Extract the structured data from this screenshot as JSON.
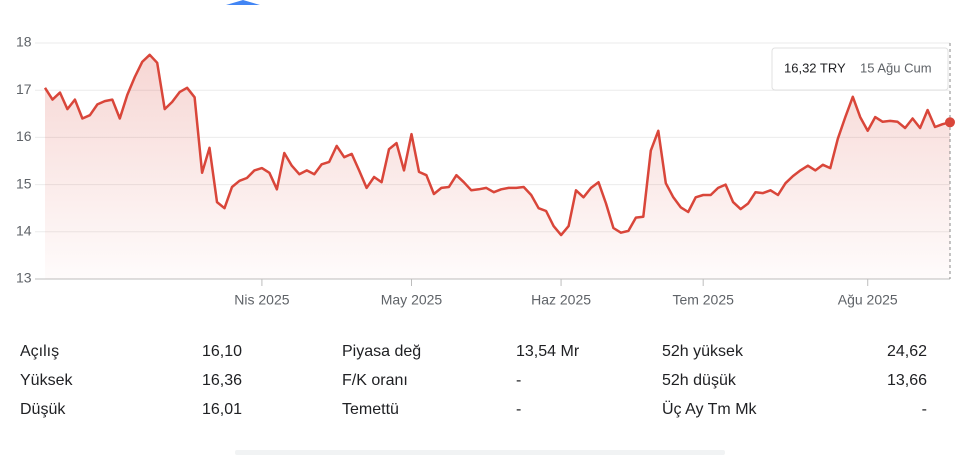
{
  "chart_data": {
    "type": "line",
    "values": [
      17.05,
      16.8,
      16.95,
      16.6,
      16.8,
      16.4,
      16.47,
      16.7,
      16.77,
      16.8,
      16.4,
      16.9,
      17.28,
      17.6,
      17.75,
      17.58,
      16.6,
      16.75,
      16.96,
      17.05,
      16.85,
      15.25,
      15.78,
      14.63,
      14.5,
      14.95,
      15.08,
      15.14,
      15.3,
      15.35,
      15.25,
      14.9,
      15.67,
      15.4,
      15.22,
      15.3,
      15.22,
      15.43,
      15.48,
      15.82,
      15.58,
      15.65,
      15.3,
      14.93,
      15.16,
      15.05,
      15.75,
      15.88,
      15.3,
      16.07,
      15.27,
      15.2,
      14.8,
      14.93,
      14.95,
      15.2,
      15.05,
      14.88,
      14.9,
      14.93,
      14.84,
      14.9,
      14.93,
      14.93,
      14.95,
      14.78,
      14.5,
      14.44,
      14.12,
      13.93,
      14.12,
      14.88,
      14.73,
      14.93,
      15.05,
      14.6,
      14.08,
      13.98,
      14.02,
      14.3,
      14.32,
      15.72,
      16.14,
      15.03,
      14.73,
      14.52,
      14.42,
      14.73,
      14.78,
      14.78,
      14.93,
      15.0,
      14.63,
      14.48,
      14.6,
      14.84,
      14.82,
      14.88,
      14.78,
      15.03,
      15.18,
      15.3,
      15.4,
      15.3,
      15.42,
      15.35,
      15.97,
      16.43,
      16.86,
      16.43,
      16.14,
      16.43,
      16.33,
      16.35,
      16.33,
      16.2,
      16.4,
      16.2,
      16.58,
      16.22,
      16.28,
      16.32
    ],
    "categories": [
      null,
      null,
      null,
      null,
      null,
      null,
      null,
      null,
      null,
      null,
      null,
      null,
      null,
      null,
      null,
      null,
      null,
      null,
      null,
      null,
      null,
      null,
      null,
      null,
      null,
      null,
      null,
      null,
      null,
      "Nis 2025",
      null,
      null,
      null,
      null,
      null,
      null,
      null,
      null,
      null,
      null,
      null,
      null,
      null,
      null,
      null,
      null,
      null,
      null,
      null,
      "May 2025",
      null,
      null,
      null,
      null,
      null,
      null,
      null,
      null,
      null,
      null,
      null,
      null,
      null,
      null,
      null,
      null,
      null,
      null,
      null,
      "Haz 2025",
      null,
      null,
      null,
      null,
      null,
      null,
      null,
      null,
      null,
      null,
      null,
      null,
      null,
      null,
      null,
      null,
      null,
      null,
      "Tem 2025",
      null,
      null,
      null,
      null,
      null,
      null,
      null,
      null,
      null,
      null,
      null,
      null,
      null,
      null,
      null,
      null,
      null,
      null,
      null,
      null,
      null,
      "Ağu 2025",
      null,
      null,
      null,
      null,
      null,
      null,
      null,
      null,
      null,
      null,
      null
    ],
    "color": "#d9463a",
    "ylim": [
      13,
      18
    ],
    "yticks": [
      13,
      14,
      15,
      16,
      17,
      18
    ],
    "grid": true,
    "tooltip": {
      "value": "16,32 TRY",
      "date": "15 Ağu Cum"
    }
  },
  "stats": [
    [
      [
        "Açılış",
        "16,10"
      ],
      [
        "Yüksek",
        "16,36"
      ],
      [
        "Düşük",
        "16,01"
      ]
    ],
    [
      [
        "Piyasa değ",
        "13,54 Mr"
      ],
      [
        "F/K oranı",
        "-"
      ],
      [
        "Temettü",
        "-"
      ]
    ],
    [
      [
        "52h yüksek",
        "24,62"
      ],
      [
        "52h düşük",
        "13,66"
      ],
      [
        "Üç Ay Tm Mk",
        "-"
      ]
    ]
  ]
}
